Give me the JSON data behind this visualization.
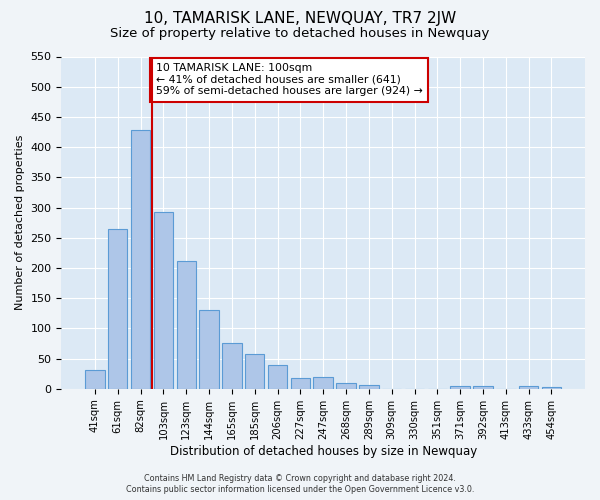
{
  "title": "10, TAMARISK LANE, NEWQUAY, TR7 2JW",
  "subtitle": "Size of property relative to detached houses in Newquay",
  "xlabel": "Distribution of detached houses by size in Newquay",
  "ylabel": "Number of detached properties",
  "footer_line1": "Contains HM Land Registry data © Crown copyright and database right 2024.",
  "footer_line2": "Contains public sector information licensed under the Open Government Licence v3.0.",
  "annotation_line1": "10 TAMARISK LANE: 100sqm",
  "annotation_line2": "← 41% of detached houses are smaller (641)",
  "annotation_line3": "59% of semi-detached houses are larger (924) →",
  "bar_labels": [
    "41sqm",
    "61sqm",
    "82sqm",
    "103sqm",
    "123sqm",
    "144sqm",
    "165sqm",
    "185sqm",
    "206sqm",
    "227sqm",
    "247sqm",
    "268sqm",
    "289sqm",
    "309sqm",
    "330sqm",
    "351sqm",
    "371sqm",
    "392sqm",
    "413sqm",
    "433sqm",
    "454sqm"
  ],
  "bar_values": [
    32,
    265,
    428,
    292,
    212,
    130,
    76,
    58,
    40,
    18,
    20,
    10,
    7,
    0,
    0,
    0,
    5,
    4,
    0,
    5,
    3
  ],
  "bar_color": "#aec6e8",
  "bar_edge_color": "#5b9bd5",
  "vline_color": "#cc0000",
  "plot_bg_color": "#dce9f5",
  "fig_bg_color": "#f0f4f8",
  "ylim": [
    0,
    550
  ],
  "yticks": [
    0,
    50,
    100,
    150,
    200,
    250,
    300,
    350,
    400,
    450,
    500,
    550
  ],
  "annotation_box_edge_color": "#cc0000",
  "title_fontsize": 11,
  "subtitle_fontsize": 9.5,
  "bar_width": 0.85
}
